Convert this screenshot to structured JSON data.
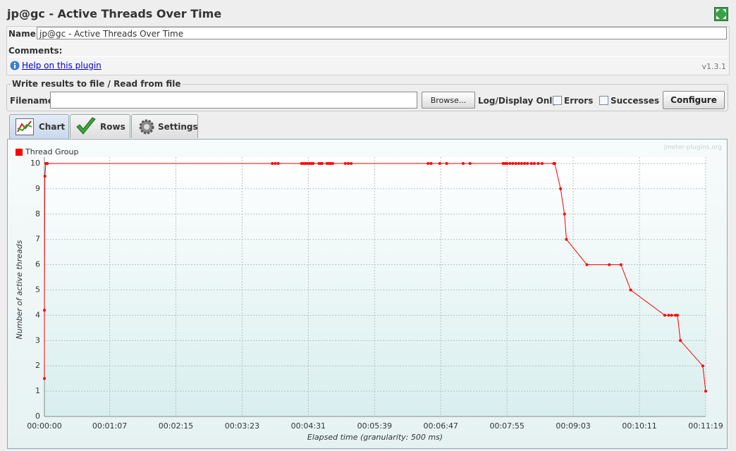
{
  "header": {
    "title": "jp@gc - Active Threads Over Time"
  },
  "form": {
    "name_label": "Name:",
    "name_value": "jp@gc - Active Threads Over Time",
    "comments_label": "Comments:",
    "help_link": "Help on this plugin",
    "version": "v1.3.1"
  },
  "file_panel": {
    "legend": "Write results to file / Read from file",
    "filename_label": "Filename",
    "browse_button": "Browse...",
    "log_label": "Log/Display Only:",
    "errors_label": "Errors",
    "successes_label": "Successes",
    "configure_button": "Configure"
  },
  "tabs": [
    "Chart",
    "Rows",
    "Settings"
  ],
  "chart_data": {
    "type": "line",
    "watermark": "jmeter-plugins.org",
    "xlabel": "Elapsed time (granularity: 500 ms)",
    "ylabel": "Number of active threads",
    "xlim": [
      0,
      679
    ],
    "xticks": [
      {
        "value": 0,
        "label": "00:00:00"
      },
      {
        "value": 67,
        "label": "00:01:07"
      },
      {
        "value": 135,
        "label": "00:02:15"
      },
      {
        "value": 203,
        "label": "00:03:23"
      },
      {
        "value": 271,
        "label": "00:04:31"
      },
      {
        "value": 339,
        "label": "00:05:39"
      },
      {
        "value": 407,
        "label": "00:06:47"
      },
      {
        "value": 475,
        "label": "00:07:55"
      },
      {
        "value": 543,
        "label": "00:09:03"
      },
      {
        "value": 611,
        "label": "00:10:11"
      },
      {
        "value": 679,
        "label": "00:11:19"
      }
    ],
    "ylim": [
      0,
      10
    ],
    "yticks": [
      0,
      1,
      2,
      3,
      4,
      5,
      6,
      7,
      8,
      9,
      10
    ],
    "grid": true,
    "x": [
      0,
      0,
      0.5,
      1.5,
      3,
      234,
      237,
      240,
      264,
      266,
      268,
      270,
      272,
      274,
      276,
      282,
      284,
      285,
      290,
      292,
      294,
      296,
      309,
      312,
      315,
      394,
      397,
      406,
      413,
      430,
      437,
      471,
      473,
      475,
      478,
      481,
      484,
      487,
      490,
      493,
      496,
      500,
      503,
      507,
      511,
      523,
      524,
      530,
      534,
      536,
      557,
      580,
      592,
      602,
      637,
      641,
      644,
      648,
      650,
      653,
      676,
      679
    ],
    "series": [
      {
        "name": "Thread Group",
        "color": "#ff0000",
        "values": [
          1.5,
          4.2,
          9.5,
          10,
          10,
          10,
          10,
          10,
          10,
          10,
          10,
          10,
          10,
          10,
          10,
          10,
          10,
          10,
          10,
          10,
          10,
          10,
          10,
          10,
          10,
          10,
          10,
          10,
          10,
          10,
          10,
          10,
          10,
          10,
          10,
          10,
          10,
          10,
          10,
          10,
          10,
          10,
          10,
          10,
          10,
          10,
          10,
          9,
          8,
          7,
          6,
          6,
          6,
          5,
          4,
          4,
          4,
          4,
          4,
          3,
          2,
          1
        ]
      }
    ]
  }
}
